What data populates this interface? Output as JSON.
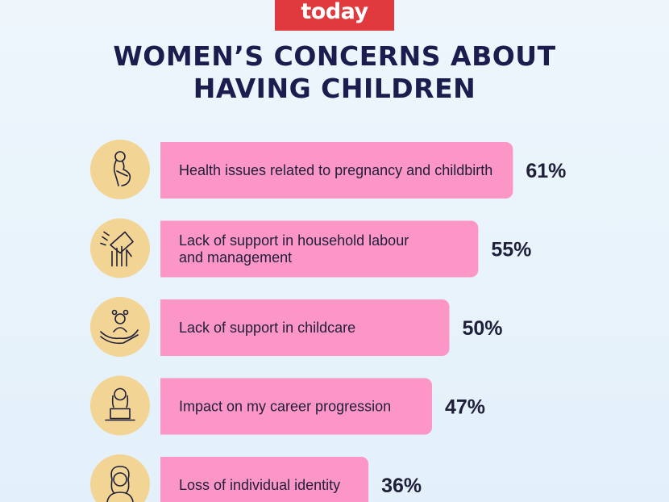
{
  "brand": {
    "logo_text": "today",
    "logo_color": "#e03a3e"
  },
  "colors": {
    "bar": "#fc96c6",
    "icon_circle": "#f2d494",
    "title": "#1c1c4e",
    "text": "#1f1f3a"
  },
  "chart_data": {
    "type": "bar",
    "orientation": "horizontal",
    "title": "WOMEN’S CONCERNS ABOUT HAVING CHILDREN",
    "title_lines": [
      "WOMEN’S CONCERNS ABOUT",
      "HAVING CHILDREN"
    ],
    "unit": "%",
    "grid": false,
    "categories": [
      {
        "lines": [
          "Health issues related to pregnancy and childbirth"
        ],
        "icon": "pregnant-woman-icon"
      },
      {
        "lines": [
          "Lack of support in household labour",
          "and management"
        ],
        "icon": "cleaning-hand-icon"
      },
      {
        "lines": [
          "Lack of support in childcare"
        ],
        "icon": "child-in-hand-icon"
      },
      {
        "lines": [
          "Impact on my career progression"
        ],
        "icon": "woman-laptop-icon"
      },
      {
        "lines": [
          "Loss of individual identity"
        ],
        "icon": "woman-portrait-icon"
      }
    ],
    "values": [
      61,
      55,
      50,
      47,
      36
    ],
    "value_labels": [
      "61%",
      "55%",
      "50%",
      "47%",
      "36%"
    ]
  }
}
